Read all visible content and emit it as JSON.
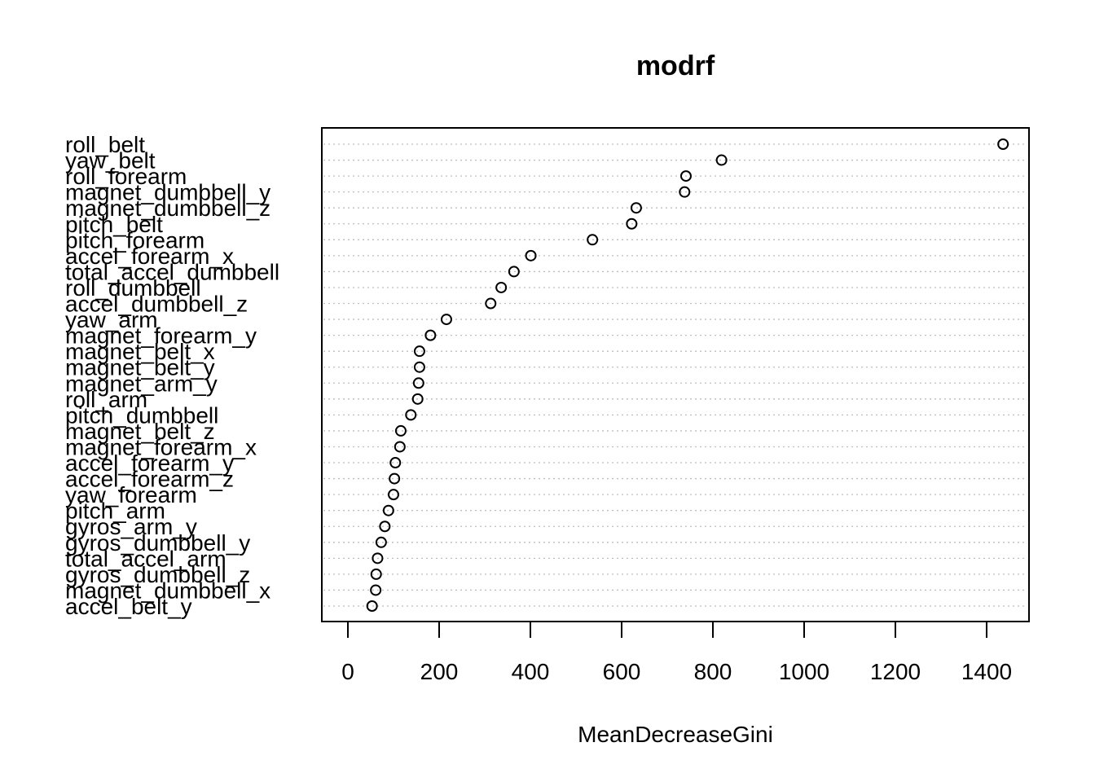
{
  "chart_data": {
    "type": "scatter",
    "style": "dotchart",
    "title": "modrf",
    "xlabel": "MeanDecreaseGini",
    "ylabel": "",
    "xlim": [
      -60,
      1500
    ],
    "xticks": [
      0,
      200,
      400,
      600,
      800,
      1000,
      1200,
      1400
    ],
    "grid": "dotted horizontal guide line per variable",
    "variables": [
      "roll_belt",
      "yaw_belt",
      "roll_forearm",
      "magnet_dumbbell_y",
      "magnet_dumbbell_z",
      "pitch_belt",
      "pitch_forearm",
      "accel_forearm_x",
      "total_accel_dumbbell",
      "roll_dumbbell",
      "accel_dumbbell_z",
      "yaw_arm",
      "magnet_forearm_y",
      "magnet_belt_x",
      "magnet_belt_y",
      "magnet_arm_y",
      "roll_arm",
      "pitch_dumbbell",
      "magnet_belt_z",
      "magnet_forearm_x",
      "accel_forearm_y",
      "accel_forearm_z",
      "yaw_forearm",
      "pitch_arm",
      "gyros_arm_y",
      "gyros_dumbbell_y",
      "total_accel_arm",
      "gyros_dumbbell_z",
      "magnet_dumbbell_x",
      "accel_belt_y"
    ],
    "values": [
      1436,
      819,
      741,
      738,
      632,
      622,
      536,
      401,
      364,
      336,
      313,
      216,
      181,
      157,
      157,
      155,
      153,
      138,
      116,
      114,
      104,
      102,
      100,
      89,
      81,
      73,
      65,
      62,
      61,
      53
    ]
  }
}
